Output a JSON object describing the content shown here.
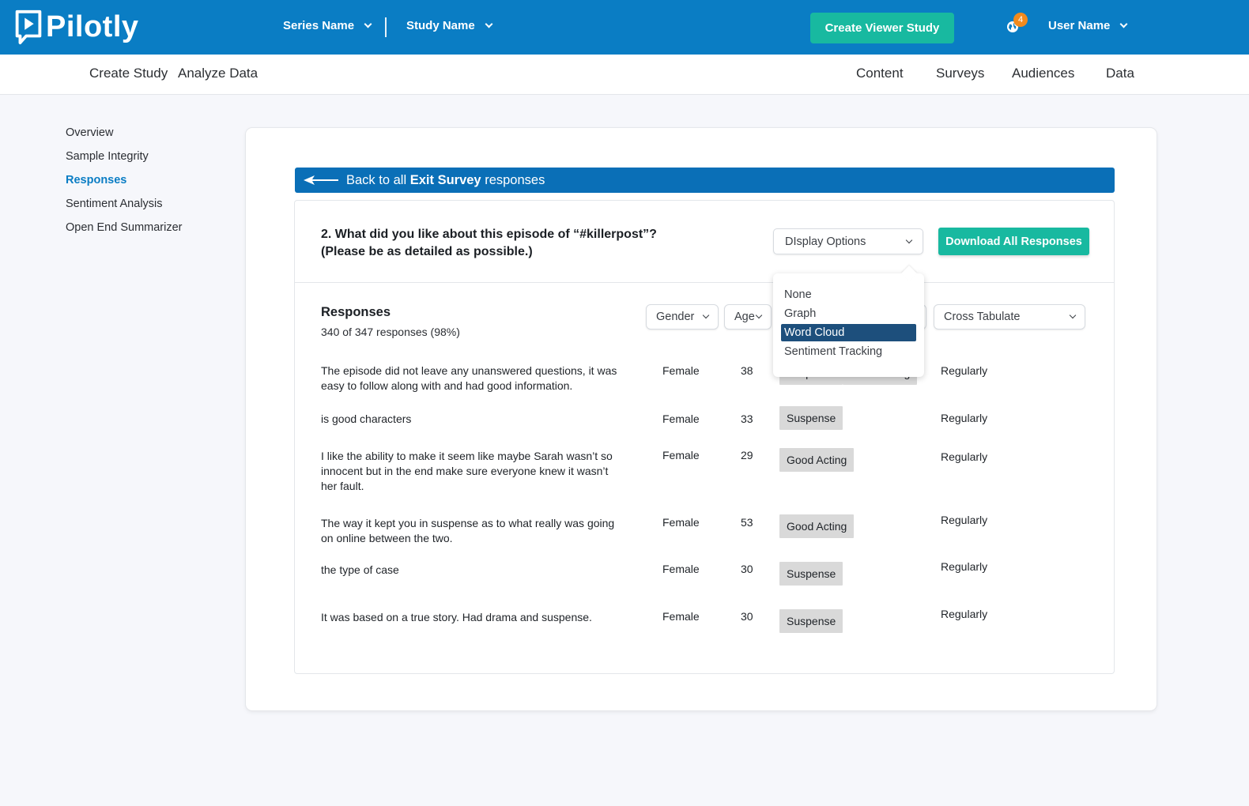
{
  "header": {
    "logo_text": "Pilotly",
    "series_label": "Series Name",
    "study_label": "Study Name",
    "create_viewer_label": "Create Viewer Study",
    "notification_count": "4",
    "user_label": "User Name",
    "brand_color": "#0a7dc4",
    "accent_color": "#18b9a0"
  },
  "subnav": {
    "left": [
      "Create Study",
      "Analyze Data"
    ],
    "right": [
      "Content",
      "Surveys",
      "Audiences",
      "Data"
    ]
  },
  "sidenav": {
    "items": [
      "Overview",
      "Sample Integrity",
      "Responses",
      "Sentiment Analysis",
      "Open End Summarizer"
    ],
    "active": "Responses"
  },
  "back": {
    "prefix": "Back to all",
    "survey": "Exit Survey",
    "suffix": "responses"
  },
  "question": {
    "line1": "2. What did you like about this episode of “#killerpost”?",
    "line2": "(Please be as detailed as possible.)"
  },
  "display_options": {
    "label": "DIsplay Options",
    "options": [
      "None",
      "Graph",
      "Word Cloud",
      "Sentiment Tracking"
    ],
    "selected": "Word Cloud"
  },
  "download_label": "Download All Responses",
  "responses": {
    "title": "Responses",
    "count": "340 of 347 responses (98%)"
  },
  "filters": {
    "gender": "Gender",
    "age": "Age",
    "cross_tabulate": "Cross Tabulate"
  },
  "rows": [
    {
      "text": "The episode did not leave any unanswered questions, it was easy to follow along with and had good information.",
      "gender": "Female",
      "age": "38",
      "tags": [
        "Suspense",
        "Good Acting"
      ],
      "frequency": "Regularly"
    },
    {
      "text": "is good characters",
      "gender": "Female",
      "age": "33",
      "tags": [
        "Suspense"
      ],
      "frequency": "Regularly"
    },
    {
      "text": "I like the ability to make it seem like maybe Sarah wasn’t so innocent but in the end make sure everyone knew it wasn’t her fault.",
      "gender": "Female",
      "age": "29",
      "tags": [
        "Good Acting"
      ],
      "frequency": "Regularly"
    },
    {
      "text": "The way it kept you in suspense as to what really was going on online between the two.",
      "gender": "Female",
      "age": "53",
      "tags": [
        "Good Acting"
      ],
      "frequency": "Regularly"
    },
    {
      "text": "the type of case",
      "gender": "Female",
      "age": "30",
      "tags": [
        "Suspense"
      ],
      "frequency": "Regularly"
    },
    {
      "text": "It was based on a true story. Had drama and suspense.",
      "gender": "Female",
      "age": "30",
      "tags": [
        "Suspense"
      ],
      "frequency": "Regularly"
    }
  ]
}
